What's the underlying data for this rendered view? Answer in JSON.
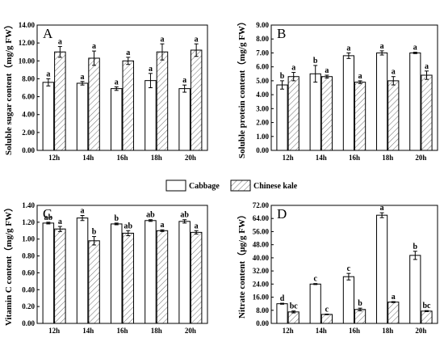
{
  "legend": {
    "cabbage_label": "Cabbage",
    "kale_label": "Chinese kale"
  },
  "chart_data": [
    {
      "type": "bar",
      "panel_label": "A",
      "ylabel": "Soluble sugar content（mg/g  FW）",
      "ylim": [
        0,
        14
      ],
      "yticks": [
        "0.00",
        "2.00",
        "4.00",
        "6.00",
        "8.00",
        "10.00",
        "12.00",
        "14.00"
      ],
      "categories": [
        "12h",
        "14h",
        "16h",
        "18h",
        "20h"
      ],
      "series": [
        {
          "name": "Cabbage",
          "values": [
            7.6,
            7.5,
            6.9,
            7.8,
            6.9
          ],
          "errors": [
            0.4,
            0.2,
            0.2,
            0.8,
            0.4
          ],
          "labels": [
            "a",
            "a",
            "a",
            "a",
            "a"
          ]
        },
        {
          "name": "Chinese kale",
          "values": [
            11.0,
            10.3,
            10.0,
            11.0,
            11.2
          ],
          "errors": [
            0.6,
            0.8,
            0.4,
            0.9,
            0.7
          ],
          "labels": [
            "a",
            "a",
            "a",
            "a",
            "a"
          ]
        }
      ]
    },
    {
      "type": "bar",
      "panel_label": "B",
      "ylabel": "Soluble protein content（mg/g  FW）",
      "ylim": [
        0,
        9
      ],
      "yticks": [
        "0.00",
        "1.00",
        "2.00",
        "3.00",
        "4.00",
        "5.00",
        "6.00",
        "7.00",
        "8.00",
        "9.00"
      ],
      "categories": [
        "12h",
        "14h",
        "16h",
        "18h",
        "20h"
      ],
      "series": [
        {
          "name": "Cabbage",
          "values": [
            4.7,
            5.5,
            6.8,
            7.0,
            7.0
          ],
          "errors": [
            0.3,
            0.6,
            0.2,
            0.15,
            0.05
          ],
          "labels": [
            "b",
            "b",
            "a",
            "a",
            "a"
          ]
        },
        {
          "name": "Chinese kale",
          "values": [
            5.3,
            5.3,
            4.9,
            5.0,
            5.4
          ],
          "errors": [
            0.3,
            0.1,
            0.1,
            0.3,
            0.3
          ],
          "labels": [
            "a",
            "a",
            "a",
            "a",
            "a"
          ]
        }
      ]
    },
    {
      "type": "bar",
      "panel_label": "C",
      "ylabel": "Vitamin C content（mg/g  FW）",
      "ylim": [
        0,
        1.4
      ],
      "yticks": [
        "0.00",
        "0.20",
        "0.40",
        "0.60",
        "0.80",
        "1.00",
        "1.20",
        "1.40"
      ],
      "categories": [
        "12h",
        "14h",
        "16h",
        "18h",
        "20h"
      ],
      "series": [
        {
          "name": "Cabbage",
          "values": [
            1.19,
            1.25,
            1.18,
            1.22,
            1.21
          ],
          "errors": [
            0.01,
            0.03,
            0.01,
            0.01,
            0.02
          ],
          "labels": [
            "ab",
            "a",
            "b",
            "ab",
            "ab"
          ]
        },
        {
          "name": "Chinese kale",
          "values": [
            1.12,
            0.98,
            1.07,
            1.1,
            1.08
          ],
          "errors": [
            0.03,
            0.05,
            0.03,
            0.01,
            0.02
          ],
          "labels": [
            "a",
            "b",
            "ab",
            "a",
            "a"
          ]
        }
      ]
    },
    {
      "type": "bar",
      "panel_label": "D",
      "ylabel": "Nitrate content（μg/g  FW）",
      "ylim": [
        0,
        72
      ],
      "yticks": [
        "0.00",
        "8.00",
        "16.00",
        "24.00",
        "32.00",
        "40.00",
        "48.00",
        "56.00",
        "64.00",
        "72.00"
      ],
      "categories": [
        "12h",
        "14h",
        "16h",
        "18h",
        "20h"
      ],
      "series": [
        {
          "name": "Cabbage",
          "values": [
            12.0,
            24.0,
            28.5,
            66.0,
            41.5
          ],
          "errors": [
            0.3,
            0.3,
            2.0,
            1.5,
            2.5
          ],
          "labels": [
            "d",
            "c",
            "c",
            "a",
            "b"
          ]
        },
        {
          "name": "Chinese kale",
          "values": [
            7.0,
            5.5,
            8.5,
            13.0,
            7.5
          ],
          "errors": [
            0.6,
            0.2,
            0.8,
            0.3,
            0.3
          ],
          "labels": [
            "bc",
            "c",
            "b",
            "a",
            "bc"
          ]
        }
      ]
    }
  ]
}
